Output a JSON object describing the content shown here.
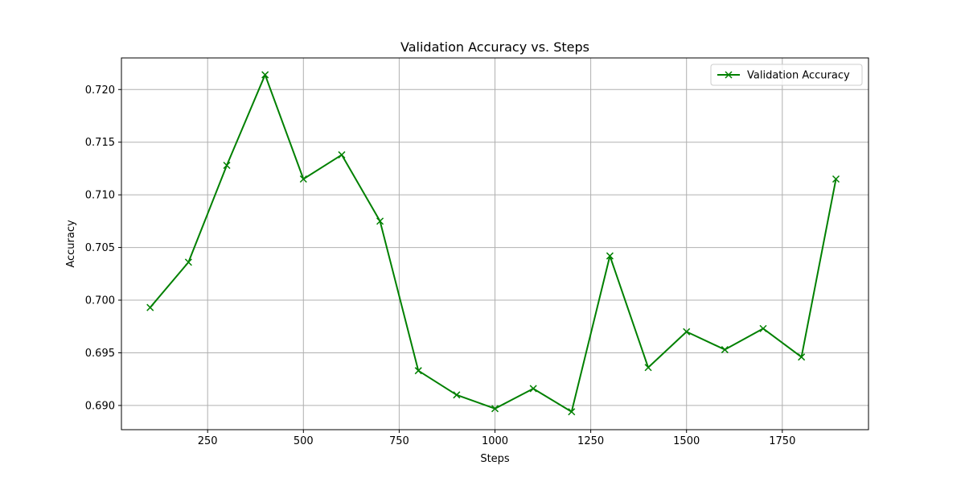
{
  "chart_data": {
    "type": "line",
    "title": "Validation Accuracy vs. Steps",
    "xlabel": "Steps",
    "ylabel": "Accuracy",
    "xlim": [
      25,
      1975
    ],
    "ylim": [
      0.6877,
      0.723
    ],
    "xticks": [
      250,
      500,
      750,
      1000,
      1250,
      1500,
      1750
    ],
    "xtick_labels": [
      "250",
      "500",
      "750",
      "1000",
      "1250",
      "1500",
      "1750"
    ],
    "yticks": [
      0.69,
      0.695,
      0.7,
      0.705,
      0.71,
      0.715,
      0.72
    ],
    "ytick_labels": [
      "0.690",
      "0.695",
      "0.700",
      "0.705",
      "0.710",
      "0.715",
      "0.720"
    ],
    "grid": true,
    "legend_position": "top-right",
    "series": [
      {
        "name": "Validation Accuracy",
        "color": "#008000",
        "marker": "x",
        "x": [
          100,
          200,
          300,
          400,
          500,
          600,
          700,
          800,
          900,
          1000,
          1100,
          1200,
          1300,
          1400,
          1500,
          1600,
          1700,
          1800,
          1890
        ],
        "y": [
          0.6993,
          0.7036,
          0.7128,
          0.7214,
          0.7115,
          0.7138,
          0.7075,
          0.6933,
          0.691,
          0.6897,
          0.6916,
          0.6894,
          0.7042,
          0.6936,
          0.697,
          0.6953,
          0.6973,
          0.6946,
          0.7115
        ]
      }
    ]
  }
}
